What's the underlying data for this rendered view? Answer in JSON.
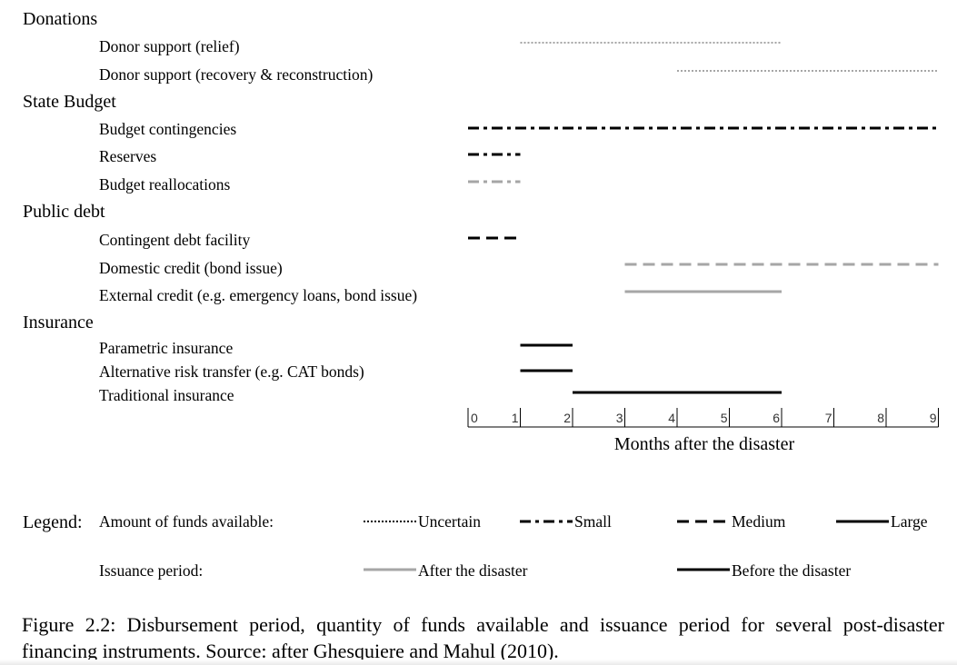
{
  "chart_data": {
    "type": "gantt",
    "x_axis": {
      "label": "Months after the disaster",
      "ticks": [
        "0",
        "1",
        "2",
        "3",
        "4",
        "5",
        "6",
        "7",
        "8",
        "9"
      ],
      "range": [
        0,
        9
      ]
    },
    "groups": [
      {
        "name": "Donations",
        "rows": [
          {
            "label": "Donor support (relief)",
            "start": 1,
            "end": 6,
            "amount": "Uncertain",
            "issuance": "After the disaster"
          },
          {
            "label": "Donor support (recovery & reconstruction)",
            "start": 4,
            "end": 9,
            "amount": "Uncertain",
            "issuance": "After the disaster"
          }
        ]
      },
      {
        "name": "State Budget",
        "rows": [
          {
            "label": "Budget contingencies",
            "start": 0,
            "end": 9,
            "amount": "Small",
            "issuance": "Before the disaster"
          },
          {
            "label": "Reserves",
            "start": 0,
            "end": 1,
            "amount": "Small",
            "issuance": "Before the disaster"
          },
          {
            "label": "Budget reallocations",
            "start": 0,
            "end": 1,
            "amount": "Small",
            "issuance": "After the disaster"
          }
        ]
      },
      {
        "name": "Public debt",
        "rows": [
          {
            "label": "Contingent debt facility",
            "start": 0,
            "end": 1,
            "amount": "Medium",
            "issuance": "Before the disaster"
          },
          {
            "label": "Domestic credit (bond issue)",
            "start": 3,
            "end": 9,
            "amount": "Medium",
            "issuance": "After the disaster"
          },
          {
            "label": "External credit (e.g. emergency loans, bond issue)",
            "start": 3,
            "end": 6,
            "amount": "Large",
            "issuance": "After the disaster"
          }
        ]
      },
      {
        "name": "Insurance",
        "rows": [
          {
            "label": "Parametric insurance",
            "start": 1,
            "end": 2,
            "amount": "Large",
            "issuance": "Before the disaster"
          },
          {
            "label": "Alternative risk transfer (e.g. CAT bonds)",
            "start": 1,
            "end": 2,
            "amount": "Large",
            "issuance": "Before the disaster"
          },
          {
            "label": "Traditional insurance",
            "start": 2,
            "end": 6,
            "amount": "Large",
            "issuance": "Before the disaster"
          }
        ]
      }
    ],
    "legend": {
      "title": "Legend:",
      "amount_label": "Amount of funds available:",
      "amount_items": [
        "Uncertain",
        "Small",
        "Medium",
        "Large"
      ],
      "issuance_label": "Issuance period:",
      "issuance_items": [
        "After the disaster",
        "Before the disaster"
      ]
    },
    "colors": {
      "Before the disaster": "#000000",
      "After the disaster": "#a6a6a6"
    }
  },
  "caption": "Figure 2.2: Disbursement period, quantity of funds available and issuance period for several post-disaster financing instruments. Source: after Ghesquiere and Mahul (2010)."
}
